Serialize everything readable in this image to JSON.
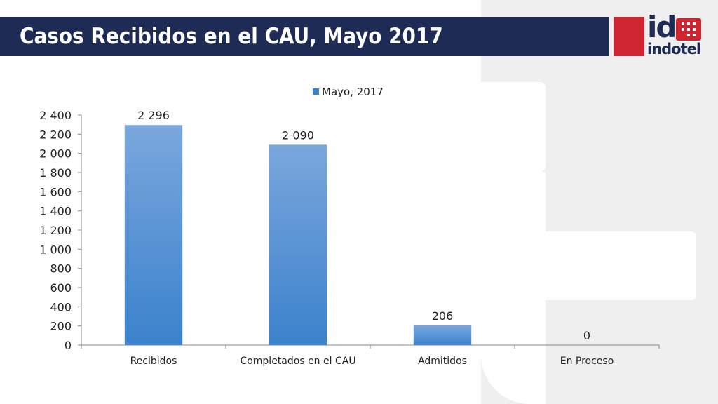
{
  "slide": {
    "title": "Casos Recibidos en el CAU, Mayo 2017",
    "logo_mark": "id",
    "logo_name": "indotel"
  },
  "colors": {
    "title_bar": "#1d2b55",
    "brand_red": "#cf2530",
    "bar_top": "#7aa7dd",
    "bar_bottom": "#3b82cc"
  },
  "chart_data": {
    "type": "bar",
    "categories": [
      "Recibidos",
      "Completados en el CAU",
      "Admitidos",
      "En Proceso"
    ],
    "series": [
      {
        "name": "Mayo, 2017",
        "values": [
          2296,
          2090,
          206,
          0
        ]
      }
    ],
    "data_labels": [
      "2 296",
      "2 090",
      "206",
      "0"
    ],
    "y_ticks": [
      0,
      200,
      400,
      600,
      800,
      1000,
      1200,
      1400,
      1600,
      1800,
      2000,
      2200,
      2400
    ],
    "y_tick_labels": [
      "0",
      "200",
      "400",
      "600",
      "800",
      "1 000",
      "1 200",
      "1 400",
      "1 600",
      "1 800",
      "2 000",
      "2 200",
      "2 400"
    ],
    "ylim": [
      0,
      2400
    ],
    "title": "",
    "xlabel": "",
    "ylabel": "",
    "legend_position": "top",
    "grid": false
  }
}
